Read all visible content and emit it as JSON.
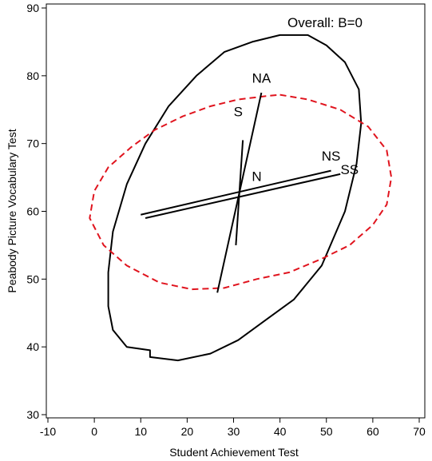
{
  "chart_data": {
    "type": "scatter",
    "title": "",
    "xlabel": "Student Achievement Test",
    "ylabel": "Peabody Picture Vocabulary Test",
    "xlim": [
      -10,
      70
    ],
    "ylim": [
      30,
      90
    ],
    "x_ticks": [
      "-10",
      "0",
      "10",
      "20",
      "30",
      "40",
      "50",
      "60",
      "70"
    ],
    "y_ticks": [
      "30",
      "40",
      "50",
      "60",
      "70",
      "80",
      "90"
    ],
    "annotation": "Overall: B=0",
    "center": {
      "x": 31.5,
      "y": 63
    },
    "ellipses": [
      {
        "name": "solid",
        "style": "solid",
        "color": "#000000",
        "points": [
          [
            12,
            39.5
          ],
          [
            7,
            40
          ],
          [
            4,
            42.5
          ],
          [
            3,
            46
          ],
          [
            3,
            51
          ],
          [
            4,
            57
          ],
          [
            7,
            64
          ],
          [
            11,
            70
          ],
          [
            16,
            75.5
          ],
          [
            22,
            80
          ],
          [
            28,
            83.5
          ],
          [
            34,
            85
          ],
          [
            40,
            86
          ],
          [
            46,
            86
          ],
          [
            50,
            84.5
          ],
          [
            54,
            82
          ],
          [
            57,
            78
          ],
          [
            57.5,
            73
          ],
          [
            56.5,
            67
          ],
          [
            54,
            60
          ],
          [
            49,
            52
          ],
          [
            43,
            47
          ],
          [
            37,
            44
          ],
          [
            31,
            41
          ],
          [
            25,
            39
          ],
          [
            18,
            38
          ],
          [
            12,
            38.5
          ]
        ]
      },
      {
        "name": "dashed",
        "style": "dashed",
        "color": "#e0141e",
        "points": [
          [
            40,
            77.2
          ],
          [
            46,
            76.5
          ],
          [
            53,
            75
          ],
          [
            59,
            72.5
          ],
          [
            63,
            69
          ],
          [
            64,
            65
          ],
          [
            63,
            61
          ],
          [
            60,
            58
          ],
          [
            55,
            55
          ],
          [
            49,
            53
          ],
          [
            42,
            51
          ],
          [
            35,
            50
          ],
          [
            28,
            48.7
          ],
          [
            21,
            48.5
          ],
          [
            14,
            49.5
          ],
          [
            7,
            52
          ],
          [
            2,
            55
          ],
          [
            -1,
            59
          ],
          [
            0,
            63
          ],
          [
            3,
            66.5
          ],
          [
            8,
            69.5
          ],
          [
            13,
            72
          ],
          [
            19,
            74
          ],
          [
            25,
            75.5
          ],
          [
            31,
            76.5
          ],
          [
            37,
            77
          ]
        ]
      }
    ],
    "lines": [
      {
        "label": "NA",
        "points": [
          [
            26.5,
            48
          ],
          [
            36,
            77.5
          ]
        ]
      },
      {
        "label": "S",
        "points": [
          [
            30.5,
            55
          ],
          [
            32,
            70.5
          ]
        ]
      },
      {
        "label": "NS",
        "points": [
          [
            10,
            59.5
          ],
          [
            51,
            66
          ]
        ]
      },
      {
        "label": "SS",
        "points": [
          [
            11,
            59
          ],
          [
            53,
            65.5
          ]
        ]
      }
    ],
    "labels": [
      {
        "text": "NA",
        "x": 36,
        "y": 79
      },
      {
        "text": "S",
        "x": 31,
        "y": 74
      },
      {
        "text": "N",
        "x": 35,
        "y": 64.5
      },
      {
        "text": "NS",
        "x": 51,
        "y": 67.5
      },
      {
        "text": "SS",
        "x": 55,
        "y": 65.5
      }
    ]
  }
}
